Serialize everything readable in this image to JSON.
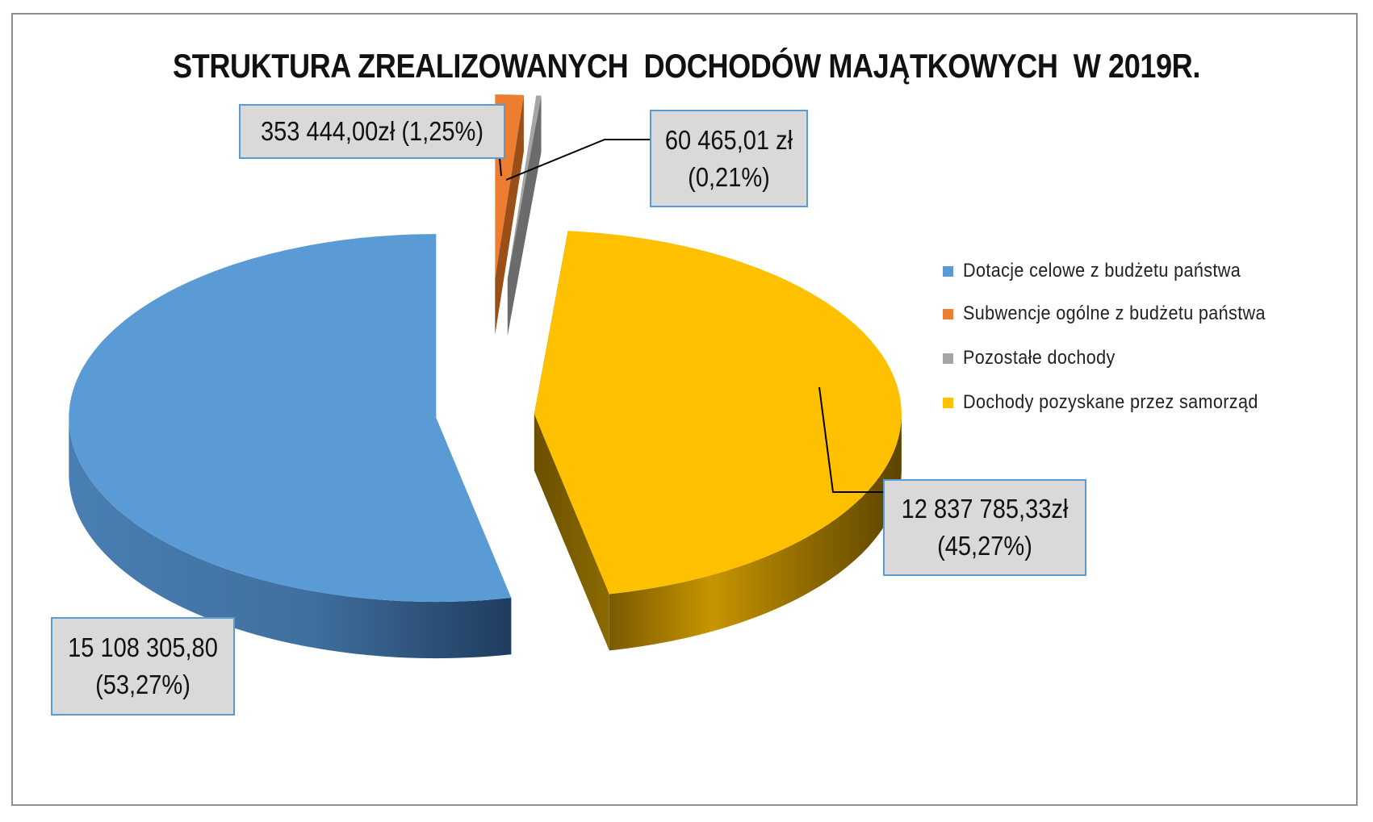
{
  "chart_data": {
    "type": "pie",
    "title": "STRUKTURA ZREALIZOWANYCH  DOCHODÓW MAJĄTKOWYCH  W 2019R.",
    "legend_position": "right",
    "series": [
      {
        "name": "Dotacje celowe z budżetu państwa",
        "value": 15108305.8,
        "percent": 53.27,
        "color": "#5b9bd5",
        "label_line1": "15 108 305,80",
        "label_line2": "(53,27%)"
      },
      {
        "name": "Subwencje ogólne z budżetu państwa",
        "value": 353444.0,
        "percent": 1.25,
        "color": "#ed7d31",
        "label_line1": "353 444,00zł (1,25%)",
        "label_line2": ""
      },
      {
        "name": "Pozostałe dochody",
        "value": 60465.01,
        "percent": 0.21,
        "color": "#a5a5a5",
        "label_line1": "60 465,01 zł",
        "label_line2": "(0,21%)"
      },
      {
        "name": "Dochody pozyskane przez samorząd",
        "value": 12837785.33,
        "percent": 45.27,
        "color": "#ffc000",
        "label_line1": "12 837 785,33zł",
        "label_line2": "(45,27%)"
      }
    ]
  }
}
